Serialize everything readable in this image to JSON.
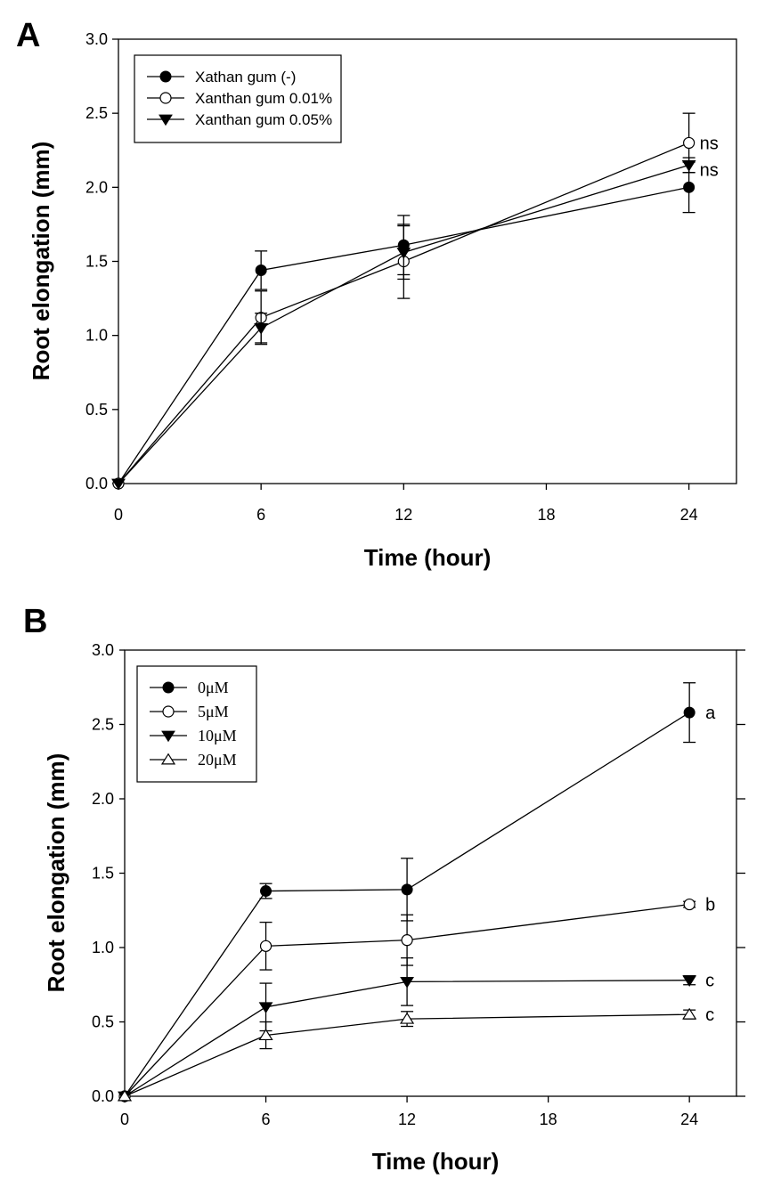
{
  "chart_data": [
    {
      "panel": "A",
      "type": "line",
      "xlabel": "Time (hour)",
      "ylabel": "Root elongation (mm)",
      "xlim": [
        0,
        26
      ],
      "ylim": [
        0,
        3.0
      ],
      "xticks": [
        "0",
        "6",
        "12",
        "18",
        "24"
      ],
      "yticks": [
        "0.0",
        "0.5",
        "1.0",
        "1.5",
        "2.0",
        "2.5",
        "3.0"
      ],
      "legend_position": "top-left",
      "x": [
        0,
        6,
        12,
        24
      ],
      "series": [
        {
          "name": "Xathan gum (-)",
          "marker": "filled-circle",
          "values": [
            0,
            1.44,
            1.61,
            2.0
          ],
          "errors": [
            0,
            0.13,
            0.2,
            0.17
          ]
        },
        {
          "name": "Xanthan gum 0.01%",
          "marker": "open-circle",
          "values": [
            0,
            1.12,
            1.5,
            2.3
          ],
          "errors": [
            0,
            0.18,
            0.25,
            0.2
          ]
        },
        {
          "name": "Xanthan gum 0.05%",
          "marker": "filled-triangle-down",
          "values": [
            0,
            1.05,
            1.56,
            2.15
          ],
          "errors": [
            0,
            0.1,
            0.18,
            0.05
          ]
        }
      ],
      "annotations": [
        {
          "text": "ns",
          "x": 24,
          "y": 2.3
        },
        {
          "text": "ns",
          "x": 24,
          "y": 2.12
        }
      ]
    },
    {
      "panel": "B",
      "type": "line",
      "xlabel": "Time (hour)",
      "ylabel": "Root elongation (mm)",
      "xlim": [
        0,
        26
      ],
      "ylim": [
        0,
        3.0
      ],
      "xticks": [
        "0",
        "6",
        "12",
        "18",
        "24"
      ],
      "yticks": [
        "0.0",
        "0.5",
        "1.0",
        "1.5",
        "2.0",
        "2.5",
        "3.0"
      ],
      "legend_position": "top-left",
      "x": [
        0,
        6,
        12,
        24
      ],
      "series": [
        {
          "name": "0μM",
          "marker": "filled-circle",
          "values": [
            0,
            1.38,
            1.39,
            2.58
          ],
          "errors": [
            0,
            0.05,
            0.21,
            0.2
          ]
        },
        {
          "name": "5μM",
          "marker": "open-circle",
          "values": [
            0,
            1.01,
            1.05,
            1.29
          ],
          "errors": [
            0,
            0.16,
            0.17,
            0.02
          ]
        },
        {
          "name": "10μM",
          "marker": "filled-triangle-down",
          "values": [
            0,
            0.6,
            0.77,
            0.78
          ],
          "errors": [
            0,
            0.16,
            0.16,
            0.03
          ]
        },
        {
          "name": "20μM",
          "marker": "open-triangle-up",
          "values": [
            0,
            0.41,
            0.52,
            0.55
          ],
          "errors": [
            0,
            0.09,
            0.05,
            0.03
          ]
        }
      ],
      "annotations": [
        {
          "text": "a",
          "x": 24,
          "y": 2.58
        },
        {
          "text": "b",
          "x": 24,
          "y": 1.29
        },
        {
          "text": "c",
          "x": 24,
          "y": 0.78
        },
        {
          "text": "c",
          "x": 24,
          "y": 0.55
        }
      ]
    }
  ]
}
